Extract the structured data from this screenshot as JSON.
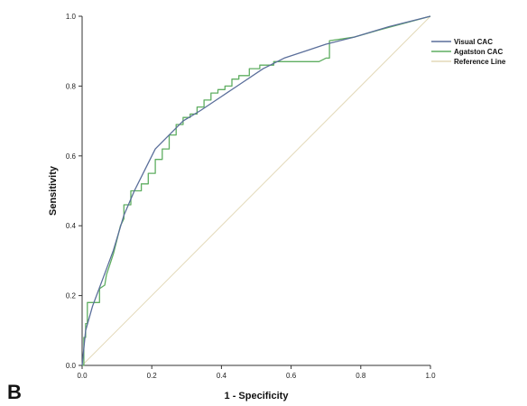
{
  "panel_label": "B",
  "chart_data": {
    "type": "line",
    "xlabel": "1 - Specificity",
    "ylabel": "Sensitivity",
    "xlim": [
      0.0,
      1.0
    ],
    "ylim": [
      0.0,
      1.0
    ],
    "xticks": [
      "0.0",
      "0.2",
      "0.4",
      "0.6",
      "0.8",
      "1.0"
    ],
    "yticks": [
      "0.0",
      "0.2",
      "0.4",
      "0.6",
      "0.8",
      "1.0"
    ],
    "grid": false,
    "legend_position": "top-right",
    "series": [
      {
        "name": "Visual CAC",
        "color": "#5a6e9a",
        "x": [
          0,
          0.01,
          0.03,
          0.06,
          0.09,
          0.12,
          0.15,
          0.18,
          0.21,
          0.25,
          0.29,
          0.34,
          0.4,
          0.46,
          0.52,
          0.58,
          0.64,
          0.7,
          0.78,
          0.88,
          1.0
        ],
        "y": [
          0,
          0.1,
          0.17,
          0.25,
          0.33,
          0.43,
          0.5,
          0.56,
          0.62,
          0.66,
          0.7,
          0.73,
          0.77,
          0.81,
          0.85,
          0.88,
          0.9,
          0.92,
          0.94,
          0.97,
          1.0
        ]
      },
      {
        "name": "Agatston CAC",
        "color": "#5fae61",
        "x": [
          0,
          0.005,
          0.005,
          0.01,
          0.01,
          0.015,
          0.015,
          0.02,
          0.02,
          0.05,
          0.05,
          0.065,
          0.07,
          0.08,
          0.09,
          0.1,
          0.11,
          0.12,
          0.12,
          0.14,
          0.14,
          0.17,
          0.17,
          0.19,
          0.19,
          0.21,
          0.21,
          0.23,
          0.23,
          0.25,
          0.25,
          0.27,
          0.27,
          0.29,
          0.29,
          0.31,
          0.31,
          0.33,
          0.33,
          0.35,
          0.35,
          0.37,
          0.37,
          0.39,
          0.39,
          0.41,
          0.41,
          0.43,
          0.43,
          0.45,
          0.45,
          0.48,
          0.48,
          0.51,
          0.51,
          0.55,
          0.55,
          0.6,
          0.6,
          0.68,
          0.7,
          0.71,
          0.71,
          0.78,
          0.85,
          1.0
        ],
        "y": [
          0,
          0,
          0.08,
          0.08,
          0.12,
          0.12,
          0.18,
          0.18,
          0.18,
          0.18,
          0.22,
          0.23,
          0.26,
          0.29,
          0.32,
          0.36,
          0.4,
          0.42,
          0.46,
          0.46,
          0.5,
          0.5,
          0.52,
          0.52,
          0.55,
          0.55,
          0.59,
          0.59,
          0.62,
          0.62,
          0.66,
          0.66,
          0.69,
          0.69,
          0.71,
          0.71,
          0.72,
          0.72,
          0.74,
          0.74,
          0.76,
          0.76,
          0.78,
          0.78,
          0.79,
          0.79,
          0.8,
          0.8,
          0.82,
          0.82,
          0.83,
          0.83,
          0.85,
          0.85,
          0.86,
          0.86,
          0.87,
          0.87,
          0.87,
          0.87,
          0.88,
          0.88,
          0.93,
          0.94,
          0.96,
          1.0
        ]
      },
      {
        "name": "Reference Line",
        "color": "#e3d9b8",
        "x": [
          0,
          1
        ],
        "y": [
          0,
          1
        ]
      }
    ]
  }
}
